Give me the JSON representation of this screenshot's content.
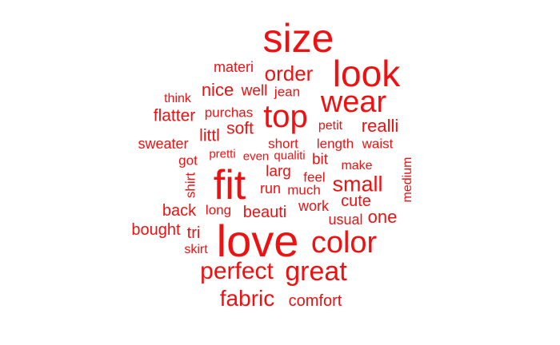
{
  "color": "#ee1111",
  "words": [
    {
      "key": "size",
      "text": "size"
    },
    {
      "key": "look",
      "text": "look"
    },
    {
      "key": "materi",
      "text": "materi"
    },
    {
      "key": "order",
      "text": "order"
    },
    {
      "key": "nice",
      "text": "nice"
    },
    {
      "key": "well",
      "text": "well"
    },
    {
      "key": "jean",
      "text": "jean"
    },
    {
      "key": "wear",
      "text": "wear"
    },
    {
      "key": "think",
      "text": "think"
    },
    {
      "key": "flatter",
      "text": "flatter"
    },
    {
      "key": "purchas",
      "text": "purchas"
    },
    {
      "key": "top",
      "text": "top"
    },
    {
      "key": "petit",
      "text": "petit"
    },
    {
      "key": "realli",
      "text": "realli"
    },
    {
      "key": "littl",
      "text": "littl"
    },
    {
      "key": "soft",
      "text": "soft"
    },
    {
      "key": "sweater",
      "text": "sweater"
    },
    {
      "key": "short",
      "text": "short"
    },
    {
      "key": "length",
      "text": "length"
    },
    {
      "key": "waist",
      "text": "waist"
    },
    {
      "key": "pretti",
      "text": "pretti"
    },
    {
      "key": "even",
      "text": "even"
    },
    {
      "key": "qualiti",
      "text": "qualiti"
    },
    {
      "key": "got",
      "text": "got"
    },
    {
      "key": "bit",
      "text": "bit"
    },
    {
      "key": "make",
      "text": "make"
    },
    {
      "key": "medium",
      "text": "medium"
    },
    {
      "key": "fit",
      "text": "fit"
    },
    {
      "key": "larg",
      "text": "larg"
    },
    {
      "key": "feel",
      "text": "feel"
    },
    {
      "key": "shirt",
      "text": "shirt"
    },
    {
      "key": "small",
      "text": "small"
    },
    {
      "key": "run",
      "text": "run"
    },
    {
      "key": "much",
      "text": "much"
    },
    {
      "key": "cute",
      "text": "cute"
    },
    {
      "key": "back",
      "text": "back"
    },
    {
      "key": "long",
      "text": "long"
    },
    {
      "key": "beauti",
      "text": "beauti"
    },
    {
      "key": "work",
      "text": "work"
    },
    {
      "key": "usual",
      "text": "usual"
    },
    {
      "key": "one",
      "text": "one"
    },
    {
      "key": "bought",
      "text": "bought"
    },
    {
      "key": "tri",
      "text": "tri"
    },
    {
      "key": "love",
      "text": "love"
    },
    {
      "key": "color",
      "text": "color"
    },
    {
      "key": "skirt",
      "text": "skirt"
    },
    {
      "key": "perfect",
      "text": "perfect"
    },
    {
      "key": "great",
      "text": "great"
    },
    {
      "key": "fabric",
      "text": "fabric"
    },
    {
      "key": "comfort",
      "text": "comfort"
    }
  ]
}
